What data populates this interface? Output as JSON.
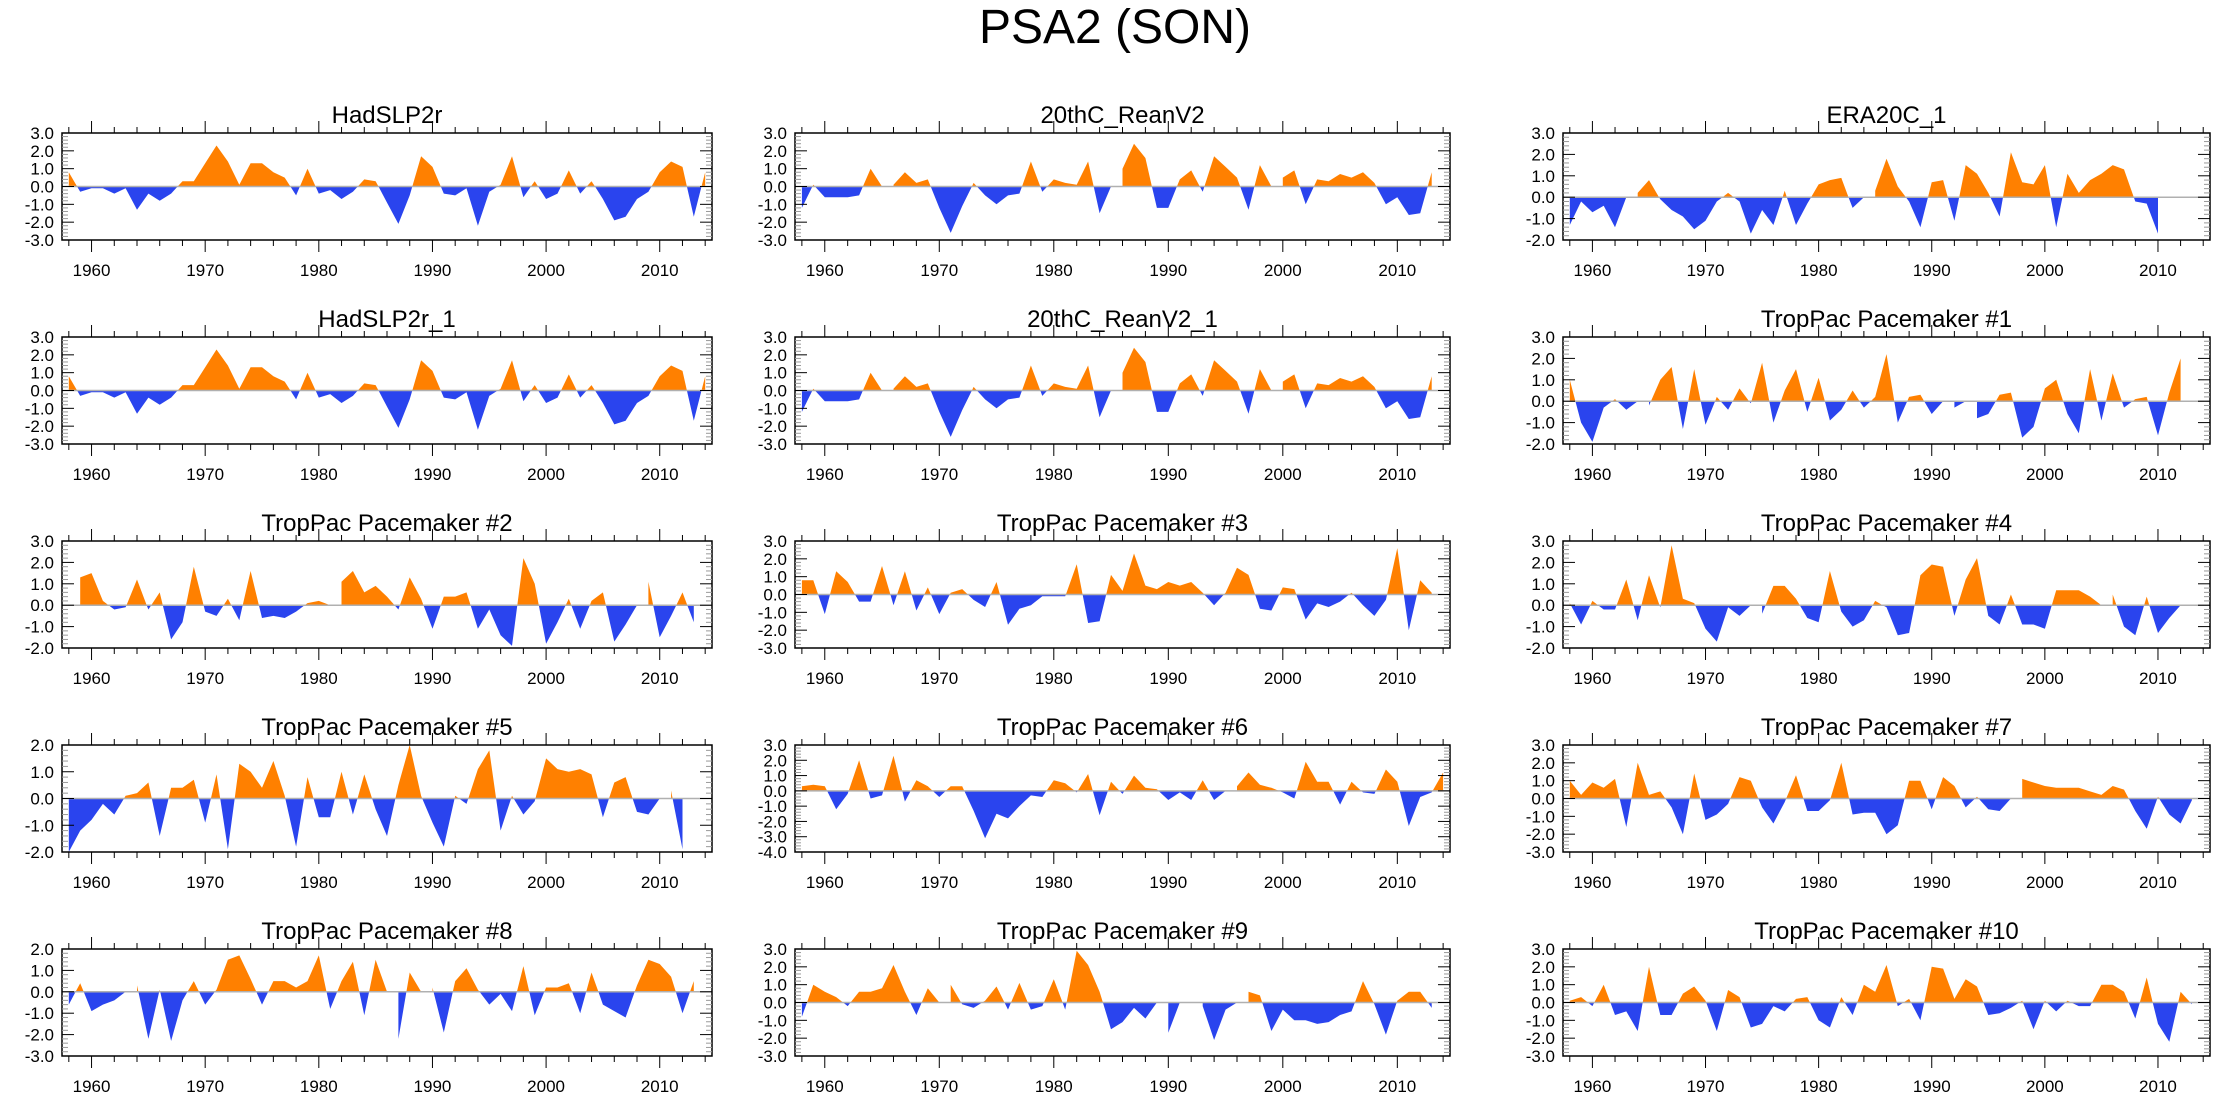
{
  "title": "PSA2 (SON)",
  "colors": {
    "positive": "#ff8000",
    "negative": "#2a44ee",
    "zero_line": "#b0b0b0"
  },
  "chart_data": [
    {
      "type": "area",
      "title": "HadSLP2r",
      "xlabel": "",
      "ylabel": "",
      "xlim": [
        1957.4,
        2014.6
      ],
      "ylim": [
        -3.0,
        3.0
      ],
      "yticks": [
        -3.0,
        -2.0,
        -1.0,
        0.0,
        1.0,
        2.0,
        3.0
      ],
      "xticks": [
        1960,
        1970,
        1980,
        1990,
        2000,
        2010
      ],
      "x_start": 1958,
      "values": [
        0.8,
        -0.3,
        -0.1,
        -0.1,
        -0.4,
        -0.1,
        -1.3,
        -0.4,
        -0.8,
        -0.4,
        0.3,
        0.3,
        1.3,
        2.3,
        1.4,
        0.1,
        1.3,
        1.3,
        0.8,
        0.5,
        -0.5,
        1.0,
        -0.4,
        -0.2,
        -0.7,
        -0.3,
        0.4,
        0.3,
        -0.9,
        -2.1,
        -0.5,
        1.7,
        1.1,
        -0.4,
        -0.5,
        -0.1,
        -2.2,
        -0.3,
        0.1,
        1.7,
        -0.6,
        0.3,
        -0.7,
        -0.4,
        0.9,
        -0.4,
        0.3,
        -0.7,
        -1.9,
        -1.7,
        -0.7,
        -0.3,
        0.8,
        1.4,
        1.1,
        -1.7,
        0.8
      ]
    },
    {
      "type": "area",
      "title": "20thC_ReanV2",
      "xlim": [
        1957.4,
        2014.6
      ],
      "ylim": [
        -3.0,
        3.0
      ],
      "yticks": [
        -3.0,
        -2.0,
        -1.0,
        0.0,
        1.0,
        2.0,
        3.0
      ],
      "xticks": [
        1960,
        1970,
        1980,
        1990,
        2000,
        2010
      ],
      "x_start": 1958,
      "values": [
        -1.2,
        0.1,
        -0.6,
        -0.6,
        -0.6,
        -0.5,
        1.0,
        0.0,
        0.1,
        0.8,
        0.2,
        0.4,
        -1.2,
        -2.6,
        -1.1,
        0.2,
        -0.5,
        -1.0,
        -0.5,
        -0.4,
        1.4,
        -0.3,
        0.4,
        0.2,
        0.1,
        1.4,
        -1.5,
        0.0,
        1.0,
        2.4,
        1.6,
        -1.2,
        -1.2,
        0.4,
        0.9,
        -0.3,
        1.7,
        1.1,
        0.5,
        -1.3,
        1.2,
        0.0,
        0.5,
        0.9,
        -1.0,
        0.4,
        0.3,
        0.7,
        0.5,
        0.8,
        0.2,
        -1.0,
        -0.6,
        -1.6,
        -1.5,
        0.8
      ]
    },
    {
      "type": "area",
      "title": "ERA20C_1",
      "xlim": [
        1957.4,
        2014.6
      ],
      "ylim": [
        -2.0,
        3.0
      ],
      "yticks": [
        -2.0,
        -1.0,
        0.0,
        1.0,
        2.0,
        3.0
      ],
      "xticks": [
        1960,
        1970,
        1980,
        1990,
        2000,
        2010
      ],
      "x_start": 1958,
      "values": [
        -1.3,
        -0.2,
        -0.7,
        -0.4,
        -1.4,
        0.0,
        0.2,
        0.8,
        -0.1,
        -0.6,
        -0.9,
        -1.5,
        -1.1,
        -0.2,
        0.2,
        -0.2,
        -1.7,
        -0.6,
        -1.3,
        0.3,
        -1.3,
        -0.3,
        0.6,
        0.8,
        0.9,
        -0.5,
        0.0,
        0.3,
        1.8,
        0.5,
        -0.2,
        -1.4,
        0.7,
        0.8,
        -1.1,
        1.5,
        1.1,
        0.2,
        -0.9,
        2.1,
        0.7,
        0.6,
        1.5,
        -1.4,
        1.1,
        0.2,
        0.8,
        1.1,
        1.5,
        1.3,
        -0.2,
        -0.3,
        -1.7
      ]
    },
    {
      "type": "area",
      "title": "HadSLP2r_1",
      "xlim": [
        1957.4,
        2014.6
      ],
      "ylim": [
        -3.0,
        3.0
      ],
      "yticks": [
        -3.0,
        -2.0,
        -1.0,
        0.0,
        1.0,
        2.0,
        3.0
      ],
      "xticks": [
        1960,
        1970,
        1980,
        1990,
        2000,
        2010
      ],
      "x_start": 1958,
      "values": [
        0.8,
        -0.3,
        -0.1,
        -0.1,
        -0.4,
        -0.1,
        -1.3,
        -0.4,
        -0.8,
        -0.4,
        0.3,
        0.3,
        1.3,
        2.3,
        1.4,
        0.1,
        1.3,
        1.3,
        0.8,
        0.5,
        -0.5,
        1.0,
        -0.4,
        -0.2,
        -0.7,
        -0.3,
        0.4,
        0.3,
        -0.9,
        -2.1,
        -0.5,
        1.7,
        1.1,
        -0.4,
        -0.5,
        -0.1,
        -2.2,
        -0.3,
        0.1,
        1.7,
        -0.6,
        0.3,
        -0.7,
        -0.4,
        0.9,
        -0.4,
        0.3,
        -0.7,
        -1.9,
        -1.7,
        -0.7,
        -0.3,
        0.8,
        1.4,
        1.1,
        -1.7,
        0.8
      ]
    },
    {
      "type": "area",
      "title": "20thC_ReanV2_1",
      "xlim": [
        1957.4,
        2014.6
      ],
      "ylim": [
        -3.0,
        3.0
      ],
      "yticks": [
        -3.0,
        -2.0,
        -1.0,
        0.0,
        1.0,
        2.0,
        3.0
      ],
      "xticks": [
        1960,
        1970,
        1980,
        1990,
        2000,
        2010
      ],
      "x_start": 1958,
      "values": [
        -1.2,
        0.1,
        -0.6,
        -0.6,
        -0.6,
        -0.5,
        1.0,
        0.0,
        0.1,
        0.8,
        0.2,
        0.4,
        -1.2,
        -2.6,
        -1.1,
        0.2,
        -0.5,
        -1.0,
        -0.5,
        -0.4,
        1.4,
        -0.3,
        0.4,
        0.2,
        0.1,
        1.4,
        -1.5,
        0.0,
        1.0,
        2.4,
        1.6,
        -1.2,
        -1.2,
        0.4,
        0.9,
        -0.3,
        1.7,
        1.1,
        0.5,
        -1.3,
        1.2,
        0.0,
        0.5,
        0.9,
        -1.0,
        0.4,
        0.3,
        0.7,
        0.5,
        0.8,
        0.2,
        -1.0,
        -0.6,
        -1.6,
        -1.5,
        0.8
      ]
    },
    {
      "type": "area",
      "title": "TropPac Pacemaker #1",
      "xlim": [
        1957.4,
        2014.6
      ],
      "ylim": [
        -2.0,
        3.0
      ],
      "yticks": [
        -2.0,
        -1.0,
        0.0,
        1.0,
        2.0,
        3.0
      ],
      "xticks": [
        1960,
        1970,
        1980,
        1990,
        2000,
        2010
      ],
      "x_start": 1958,
      "values": [
        1.0,
        -1.0,
        -1.9,
        -0.3,
        0.1,
        -0.4,
        0.0,
        -0.2,
        1.0,
        1.6,
        -1.3,
        1.5,
        -1.1,
        0.2,
        -0.4,
        0.6,
        -0.1,
        1.8,
        -1.0,
        0.5,
        1.5,
        -0.5,
        1.1,
        -0.9,
        -0.4,
        0.5,
        -0.3,
        0.2,
        2.2,
        -1.0,
        0.2,
        0.3,
        -0.6,
        0.0,
        -0.3,
        0.0,
        -0.8,
        -0.6,
        0.3,
        0.4,
        -1.7,
        -1.2,
        0.6,
        1.0,
        -0.6,
        -1.5,
        1.5,
        -0.9,
        1.3,
        -0.3,
        0.1,
        0.2,
        -1.6,
        0.4,
        2.0
      ]
    },
    {
      "type": "area",
      "title": "TropPac Pacemaker #2",
      "xlim": [
        1957.4,
        2014.6
      ],
      "ylim": [
        -2.0,
        3.0
      ],
      "yticks": [
        -2.0,
        -1.0,
        0.0,
        1.0,
        2.0,
        3.0
      ],
      "xticks": [
        1960,
        1970,
        1980,
        1990,
        2000,
        2010
      ],
      "x_start": 1958,
      "values": [
        0.0,
        1.3,
        1.5,
        0.2,
        -0.2,
        -0.1,
        1.2,
        -0.2,
        0.6,
        -1.6,
        -0.8,
        1.8,
        -0.3,
        -0.5,
        0.3,
        -0.7,
        1.6,
        -0.6,
        -0.5,
        -0.6,
        -0.3,
        0.1,
        0.2,
        0.0,
        1.1,
        1.6,
        0.6,
        0.9,
        0.4,
        -0.2,
        1.3,
        0.3,
        -1.1,
        0.4,
        0.4,
        0.6,
        -1.1,
        -0.2,
        -1.4,
        -1.9,
        2.2,
        1.0,
        -1.8,
        -0.8,
        0.3,
        -1.1,
        0.2,
        0.6,
        -1.7,
        -0.9,
        0.0,
        1.1,
        -1.5,
        -0.5,
        0.6,
        -0.8
      ]
    },
    {
      "type": "area",
      "title": "TropPac Pacemaker #3",
      "xlim": [
        1957.4,
        2014.6
      ],
      "ylim": [
        -3.0,
        3.0
      ],
      "yticks": [
        -3.0,
        -2.0,
        -1.0,
        0.0,
        1.0,
        2.0,
        3.0
      ],
      "xticks": [
        1960,
        1970,
        1980,
        1990,
        2000,
        2010
      ],
      "x_start": 1958,
      "values": [
        0.8,
        0.8,
        -1.1,
        1.3,
        0.7,
        -0.4,
        -0.4,
        1.6,
        -0.6,
        1.3,
        -0.9,
        0.4,
        -1.1,
        0.1,
        0.3,
        -0.3,
        -0.7,
        0.7,
        -1.7,
        -0.8,
        -0.6,
        -0.1,
        -0.1,
        -0.1,
        1.7,
        -1.6,
        -1.5,
        1.1,
        0.2,
        2.3,
        0.5,
        0.3,
        0.7,
        0.5,
        0.7,
        0.1,
        -0.6,
        0.1,
        1.5,
        1.1,
        -0.8,
        -0.9,
        0.4,
        0.3,
        -1.4,
        -0.5,
        -0.7,
        -0.4,
        0.1,
        -0.6,
        -1.2,
        -0.3,
        2.6,
        -2.0,
        0.8,
        0.1
      ]
    },
    {
      "type": "area",
      "title": "TropPac Pacemaker #4",
      "xlim": [
        1957.4,
        2014.6
      ],
      "ylim": [
        -2.0,
        3.0
      ],
      "yticks": [
        -2.0,
        -1.0,
        0.0,
        1.0,
        2.0,
        3.0
      ],
      "xticks": [
        1960,
        1970,
        1980,
        1990,
        2000,
        2010
      ],
      "x_start": 1958,
      "values": [
        0.1,
        -0.9,
        0.2,
        -0.2,
        -0.2,
        1.2,
        -0.7,
        1.4,
        -0.1,
        2.8,
        0.3,
        0.1,
        -1.1,
        -1.7,
        -0.1,
        -0.5,
        0.0,
        -0.4,
        0.9,
        0.9,
        0.3,
        -0.6,
        -0.8,
        1.6,
        -0.3,
        -1.0,
        -0.7,
        0.2,
        -0.1,
        -1.4,
        -1.3,
        1.4,
        1.9,
        1.8,
        -0.5,
        1.2,
        2.2,
        -0.5,
        -0.9,
        0.5,
        -0.9,
        -0.9,
        -1.1,
        0.7,
        0.7,
        0.7,
        0.4,
        0.0,
        0.5,
        -1.0,
        -1.4,
        0.4,
        -1.3,
        -0.6,
        0.0,
        0.3
      ]
    },
    {
      "type": "area",
      "title": "TropPac Pacemaker #5",
      "xlim": [
        1957.4,
        2014.6
      ],
      "ylim": [
        -2.0,
        2.0
      ],
      "yticks": [
        -2.0,
        -1.0,
        0.0,
        1.0,
        2.0
      ],
      "xticks": [
        1960,
        1970,
        1980,
        1990,
        2000,
        2010
      ],
      "x_start": 1958,
      "values": [
        -2.0,
        -1.2,
        -0.8,
        -0.2,
        -0.6,
        0.1,
        0.2,
        0.6,
        -1.4,
        0.4,
        0.4,
        0.7,
        -0.9,
        0.9,
        -1.9,
        1.3,
        1.0,
        0.4,
        1.4,
        0.1,
        -1.8,
        0.8,
        -0.7,
        -0.7,
        1.0,
        -0.6,
        0.9,
        -0.4,
        -1.4,
        0.5,
        2.0,
        0.1,
        -0.9,
        -1.8,
        0.1,
        -0.2,
        1.1,
        1.8,
        -1.2,
        0.1,
        -0.6,
        -0.1,
        1.5,
        1.1,
        1.0,
        1.1,
        0.9,
        -0.7,
        0.6,
        0.8,
        -0.5,
        -0.6,
        0.0,
        0.3,
        -1.9
      ]
    },
    {
      "type": "area",
      "title": "TropPac Pacemaker #6",
      "xlim": [
        1957.4,
        2014.6
      ],
      "ylim": [
        -4.0,
        3.0
      ],
      "yticks": [
        -4.0,
        -3.0,
        -2.0,
        -1.0,
        0.0,
        1.0,
        2.0,
        3.0
      ],
      "xticks": [
        1960,
        1970,
        1980,
        1990,
        2000,
        2010
      ],
      "x_start": 1958,
      "values": [
        0.3,
        0.4,
        0.3,
        -1.2,
        -0.2,
        2.0,
        -0.5,
        -0.3,
        2.3,
        -0.7,
        0.7,
        0.3,
        -0.4,
        0.3,
        0.3,
        -1.3,
        -3.1,
        -1.5,
        -1.8,
        -1.0,
        -0.3,
        -0.4,
        0.7,
        0.5,
        -0.1,
        1.1,
        -1.6,
        0.6,
        -0.2,
        1.0,
        0.2,
        0.1,
        -0.6,
        -0.1,
        -0.6,
        0.7,
        -0.6,
        0.0,
        0.3,
        1.2,
        0.4,
        0.2,
        -0.1,
        -0.5,
        1.9,
        0.6,
        0.6,
        -0.9,
        0.6,
        -0.1,
        -0.2,
        1.4,
        0.6,
        -2.3,
        -0.4,
        -0.1,
        1.2
      ]
    },
    {
      "type": "area",
      "title": "TropPac Pacemaker #7",
      "xlim": [
        1957.4,
        2014.6
      ],
      "ylim": [
        -3.0,
        3.0
      ],
      "yticks": [
        -3.0,
        -2.0,
        -1.0,
        0.0,
        1.0,
        2.0,
        3.0
      ],
      "xticks": [
        1960,
        1970,
        1980,
        1990,
        2000,
        2010
      ],
      "x_start": 1958,
      "values": [
        1.0,
        0.2,
        0.9,
        0.6,
        1.1,
        -1.6,
        2.0,
        0.2,
        0.4,
        -0.5,
        -2.0,
        1.4,
        -1.2,
        -0.9,
        -0.3,
        1.2,
        1.0,
        -0.5,
        -1.4,
        -0.2,
        1.3,
        -0.7,
        -0.7,
        -0.1,
        2.0,
        -0.9,
        -0.8,
        -0.8,
        -2.0,
        -1.5,
        1.0,
        1.0,
        -0.6,
        1.2,
        0.7,
        -0.5,
        0.1,
        -0.6,
        -0.7,
        0.0,
        1.1,
        0.9,
        0.7,
        0.6,
        0.6,
        0.6,
        0.4,
        0.2,
        0.7,
        0.5,
        -0.7,
        -1.7,
        0.1,
        -0.9,
        -1.4,
        -0.1
      ]
    },
    {
      "type": "area",
      "title": "TropPac Pacemaker #8",
      "xlim": [
        1957.4,
        2014.6
      ],
      "ylim": [
        -3.0,
        2.0
      ],
      "yticks": [
        -3.0,
        -2.0,
        -1.0,
        0.0,
        1.0,
        2.0
      ],
      "xticks": [
        1960,
        1970,
        1980,
        1990,
        2000,
        2010
      ],
      "x_start": 1958,
      "values": [
        -0.6,
        0.4,
        -0.9,
        -0.6,
        -0.4,
        0.0,
        0.3,
        -2.2,
        0.1,
        -2.3,
        -0.4,
        0.5,
        -0.6,
        0.1,
        1.5,
        1.7,
        0.6,
        -0.6,
        0.5,
        0.5,
        0.2,
        0.5,
        1.7,
        -0.8,
        0.5,
        1.4,
        -1.1,
        1.5,
        0.0,
        -2.2,
        0.9,
        0.0,
        0.2,
        -1.9,
        0.5,
        1.1,
        0.1,
        -0.6,
        -0.1,
        -0.9,
        1.2,
        -1.1,
        0.2,
        0.2,
        0.4,
        -1.0,
        0.9,
        -0.6,
        -0.9,
        -1.2,
        0.3,
        1.5,
        1.3,
        0.7,
        -1.0,
        0.5
      ]
    },
    {
      "type": "area",
      "title": "TropPac Pacemaker #9",
      "xlim": [
        1957.4,
        2014.6
      ],
      "ylim": [
        -3.0,
        3.0
      ],
      "yticks": [
        -3.0,
        -2.0,
        -1.0,
        0.0,
        1.0,
        2.0,
        3.0
      ],
      "xticks": [
        1960,
        1970,
        1980,
        1990,
        2000,
        2010
      ],
      "x_start": 1958,
      "values": [
        -0.8,
        1.0,
        0.6,
        0.3,
        -0.2,
        0.6,
        0.6,
        0.8,
        2.1,
        0.6,
        -0.7,
        0.8,
        0.0,
        1.0,
        -0.1,
        -0.3,
        0.1,
        0.9,
        -0.4,
        1.1,
        -0.4,
        -0.2,
        1.3,
        -0.4,
        2.9,
        2.1,
        0.6,
        -1.5,
        -1.1,
        -0.3,
        -0.9,
        0.0,
        -1.7,
        0.0,
        0.0,
        -0.2,
        -2.1,
        -0.4,
        0.0,
        0.6,
        0.4,
        -1.6,
        -0.4,
        -1.0,
        -1.0,
        -1.2,
        -1.1,
        -0.7,
        -0.5,
        1.2,
        -0.1,
        -1.8,
        0.1,
        0.6,
        0.6,
        -0.3
      ]
    },
    {
      "type": "area",
      "title": "TropPac Pacemaker #10",
      "xlim": [
        1957.4,
        2014.6
      ],
      "ylim": [
        -3.0,
        3.0
      ],
      "yticks": [
        -3.0,
        -2.0,
        -1.0,
        0.0,
        1.0,
        2.0,
        3.0
      ],
      "xticks": [
        1960,
        1970,
        1980,
        1990,
        2000,
        2010
      ],
      "x_start": 1958,
      "values": [
        0.1,
        0.3,
        -0.2,
        1.0,
        -0.7,
        -0.5,
        -1.6,
        2.0,
        -0.7,
        -0.7,
        0.5,
        0.9,
        0.1,
        -1.6,
        0.7,
        0.3,
        -1.4,
        -1.2,
        -0.2,
        -0.5,
        0.2,
        0.3,
        -1.0,
        -1.4,
        0.3,
        -0.7,
        1.0,
        0.6,
        2.1,
        -0.2,
        0.2,
        -1.0,
        2.0,
        1.9,
        0.2,
        1.3,
        0.9,
        -0.7,
        -0.6,
        -0.3,
        0.1,
        -1.5,
        0.1,
        -0.5,
        0.1,
        -0.2,
        -0.2,
        1.0,
        1.0,
        0.6,
        -0.9,
        1.4,
        -1.2,
        -2.2,
        0.6,
        -0.1
      ]
    }
  ]
}
